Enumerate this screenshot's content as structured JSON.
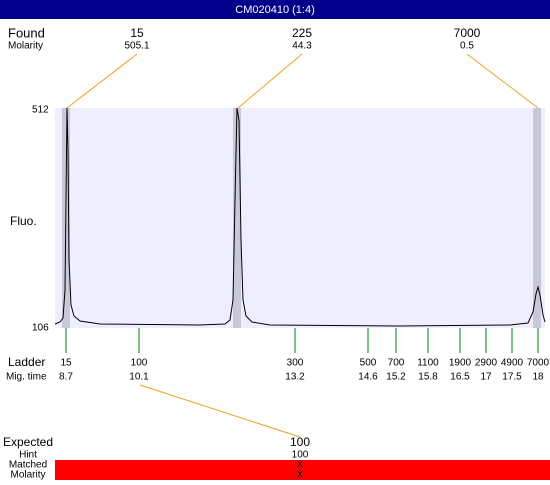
{
  "header": {
    "title": "CM020410 (1:4)"
  },
  "found": {
    "label": "Found",
    "sublabel": "Molarity",
    "peaks": [
      {
        "size": 15,
        "molarity": 505.1
      },
      {
        "size": 225,
        "molarity": 44.3
      },
      {
        "size": 7000,
        "molarity": 0.5
      }
    ]
  },
  "plot": {
    "y_label": "Fluo.",
    "y_max": 512,
    "y_min": 106
  },
  "ladder": {
    "label": "Ladder",
    "sublabel": "Mig. time",
    "sizes": [
      15,
      100,
      300,
      500,
      700,
      1100,
      1900,
      2900,
      4900,
      7000
    ],
    "mig_times": [
      8.7,
      10.1,
      13.2,
      14.6,
      15.2,
      15.8,
      16.5,
      17,
      17.5,
      18
    ]
  },
  "expected": {
    "label": "Expected",
    "value": 100,
    "rows": [
      {
        "label": "Hint",
        "value": "100"
      },
      {
        "label": "Matched",
        "value": "X"
      },
      {
        "label": "Molarity",
        "value": "X"
      }
    ]
  }
}
